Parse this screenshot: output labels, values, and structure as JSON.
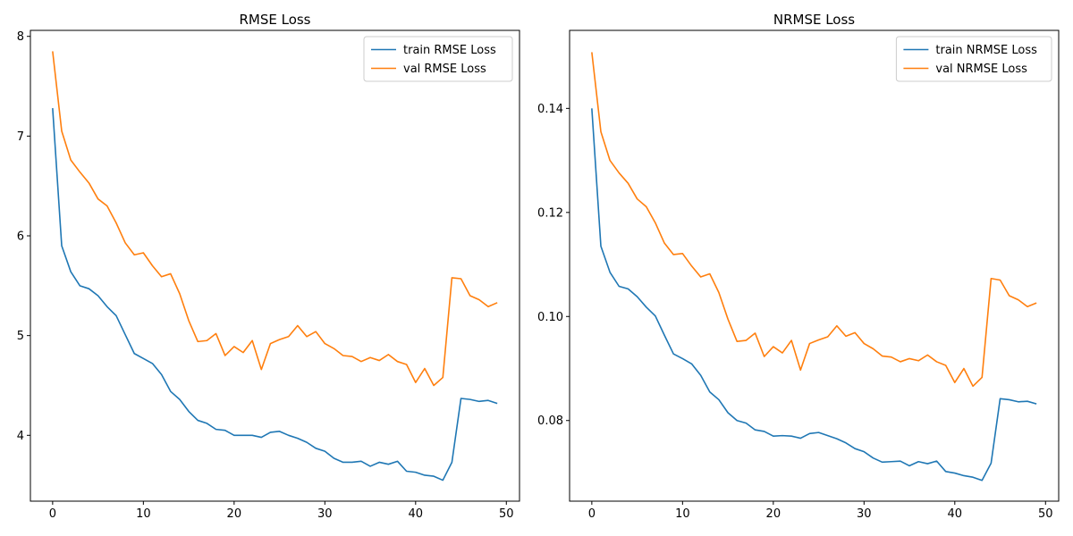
{
  "chart_data": [
    {
      "type": "line",
      "title": "RMSE Loss",
      "xlabel": "",
      "ylabel": "",
      "xlim": [
        -2.45,
        51.45
      ],
      "ylim": [
        3.34,
        8.06
      ],
      "xticks": [
        0,
        10,
        20,
        30,
        40,
        50
      ],
      "yticks": [
        4,
        5,
        6,
        7,
        8
      ],
      "grid": false,
      "legend": "top-right",
      "series": [
        {
          "name": "train RMSE Loss",
          "color": "#1f77b4",
          "x": [
            0,
            1,
            2,
            3,
            4,
            5,
            6,
            7,
            8,
            9,
            10,
            11,
            12,
            13,
            14,
            15,
            16,
            17,
            18,
            19,
            20,
            21,
            22,
            23,
            24,
            25,
            26,
            27,
            28,
            29,
            30,
            31,
            32,
            33,
            34,
            35,
            36,
            37,
            38,
            39,
            40,
            41,
            42,
            43,
            44,
            45,
            46,
            47,
            48,
            49
          ],
          "values": [
            7.28,
            5.9,
            5.64,
            5.5,
            5.47,
            5.4,
            5.29,
            5.2,
            5.01,
            4.82,
            4.77,
            4.72,
            4.61,
            4.44,
            4.36,
            4.24,
            4.15,
            4.12,
            4.06,
            4.05,
            4.0,
            4.0,
            4.0,
            3.98,
            4.03,
            4.04,
            4.0,
            3.97,
            3.93,
            3.87,
            3.84,
            3.77,
            3.73,
            3.73,
            3.74,
            3.69,
            3.73,
            3.71,
            3.74,
            3.64,
            3.63,
            3.6,
            3.59,
            3.55,
            3.73,
            4.37,
            4.36,
            4.34,
            4.35,
            4.32
          ]
        },
        {
          "name": "val RMSE Loss",
          "color": "#ff7f0e",
          "x": [
            0,
            1,
            2,
            3,
            4,
            5,
            6,
            7,
            8,
            9,
            10,
            11,
            12,
            13,
            14,
            15,
            16,
            17,
            18,
            19,
            20,
            21,
            22,
            23,
            24,
            25,
            26,
            27,
            28,
            29,
            30,
            31,
            32,
            33,
            34,
            35,
            36,
            37,
            38,
            39,
            40,
            41,
            42,
            43,
            44,
            45,
            46,
            47,
            48,
            49
          ],
          "values": [
            7.85,
            7.05,
            6.76,
            6.64,
            6.53,
            6.37,
            6.3,
            6.13,
            5.93,
            5.81,
            5.83,
            5.7,
            5.59,
            5.62,
            5.42,
            5.15,
            4.94,
            4.95,
            5.02,
            4.8,
            4.89,
            4.83,
            4.95,
            4.66,
            4.92,
            4.96,
            4.99,
            5.1,
            4.99,
            5.04,
            4.92,
            4.87,
            4.8,
            4.79,
            4.74,
            4.78,
            4.75,
            4.81,
            4.74,
            4.71,
            4.53,
            4.67,
            4.5,
            4.58,
            5.58,
            5.57,
            5.4,
            5.36,
            5.29,
            5.33
          ]
        }
      ]
    },
    {
      "type": "line",
      "title": "NRMSE Loss",
      "xlabel": "",
      "ylabel": "",
      "xlim": [
        -2.45,
        51.45
      ],
      "ylim": [
        0.0645,
        0.155
      ],
      "xticks": [
        0,
        10,
        20,
        30,
        40,
        50
      ],
      "yticks": [
        0.08,
        0.1,
        0.12,
        0.14
      ],
      "ytick_labels": [
        "0.08",
        "0.10",
        "0.12",
        "0.14"
      ],
      "grid": false,
      "legend": "top-right",
      "series": [
        {
          "name": "train NRMSE Loss",
          "color": "#1f77b4",
          "x": [
            0,
            1,
            2,
            3,
            4,
            5,
            6,
            7,
            8,
            9,
            10,
            11,
            12,
            13,
            14,
            15,
            16,
            17,
            18,
            19,
            20,
            21,
            22,
            23,
            24,
            25,
            26,
            27,
            28,
            29,
            30,
            31,
            32,
            33,
            34,
            35,
            36,
            37,
            38,
            39,
            40,
            41,
            42,
            43,
            44,
            45,
            46,
            47,
            48,
            49
          ],
          "values": [
            0.14,
            0.1135,
            0.1085,
            0.1058,
            0.1053,
            0.1038,
            0.1018,
            0.1001,
            0.0964,
            0.0928,
            0.0919,
            0.0909,
            0.0887,
            0.0855,
            0.084,
            0.0815,
            0.08,
            0.0795,
            0.0782,
            0.0779,
            0.077,
            0.0771,
            0.077,
            0.0766,
            0.0775,
            0.0777,
            0.0771,
            0.0765,
            0.0757,
            0.0746,
            0.074,
            0.0728,
            0.072,
            0.0721,
            0.0722,
            0.0713,
            0.0721,
            0.0717,
            0.0722,
            0.0702,
            0.0699,
            0.0694,
            0.0691,
            0.0685,
            0.0718,
            0.0842,
            0.084,
            0.0836,
            0.0837,
            0.0832
          ]
        },
        {
          "name": "val NRMSE Loss",
          "color": "#ff7f0e",
          "x": [
            0,
            1,
            2,
            3,
            4,
            5,
            6,
            7,
            8,
            9,
            10,
            11,
            12,
            13,
            14,
            15,
            16,
            17,
            18,
            19,
            20,
            21,
            22,
            23,
            24,
            25,
            26,
            27,
            28,
            29,
            30,
            31,
            32,
            33,
            34,
            35,
            36,
            37,
            38,
            39,
            40,
            41,
            42,
            43,
            44,
            45,
            46,
            47,
            48,
            49
          ],
          "values": [
            0.1508,
            0.1355,
            0.13,
            0.1276,
            0.1256,
            0.1226,
            0.1211,
            0.118,
            0.1141,
            0.1119,
            0.1121,
            0.1097,
            0.1076,
            0.1082,
            0.1046,
            0.0995,
            0.0952,
            0.0954,
            0.0968,
            0.0923,
            0.0942,
            0.093,
            0.0954,
            0.0897,
            0.0948,
            0.0955,
            0.0961,
            0.0982,
            0.0962,
            0.0969,
            0.0948,
            0.0938,
            0.0924,
            0.0922,
            0.0913,
            0.0919,
            0.0915,
            0.0926,
            0.0913,
            0.0906,
            0.0873,
            0.09,
            0.0866,
            0.0883,
            0.1073,
            0.107,
            0.104,
            0.1032,
            0.1019,
            0.1026
          ]
        }
      ]
    }
  ]
}
